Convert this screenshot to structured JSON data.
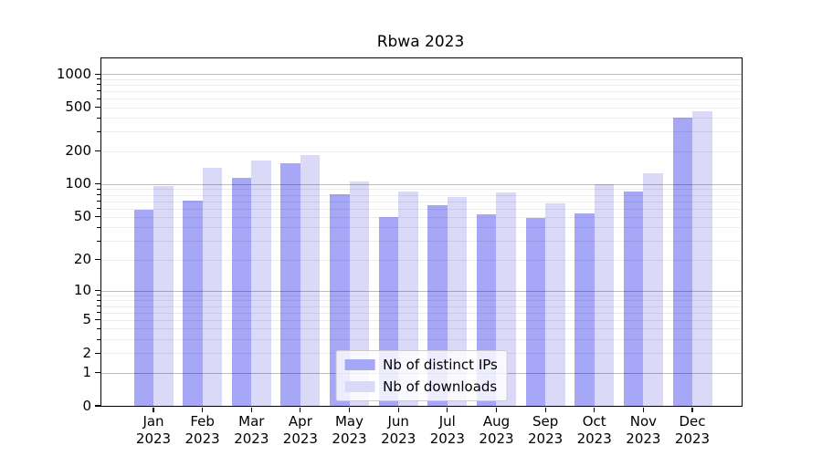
{
  "chart_data": {
    "type": "bar",
    "title": "Rbwa 2023",
    "scale": "log1p",
    "xlabel": "",
    "ylabel": "",
    "categories": [
      "Jan 2023",
      "Feb 2023",
      "Mar 2023",
      "Apr 2023",
      "May 2023",
      "Jun 2023",
      "Jul 2023",
      "Aug 2023",
      "Sep 2023",
      "Oct 2023",
      "Nov 2023",
      "Dec 2023"
    ],
    "series": [
      {
        "name": "Nb of distinct IPs",
        "color": "#a7a7f8",
        "values": [
          58,
          70,
          115,
          155,
          81,
          50,
          64,
          53,
          49,
          54,
          85,
          400
        ]
      },
      {
        "name": "Nb of downloads",
        "color": "#dadaf8",
        "values": [
          96,
          140,
          165,
          185,
          106,
          85,
          77,
          84,
          67,
          100,
          125,
          460
        ]
      }
    ],
    "yticks": [
      0,
      1,
      2,
      5,
      10,
      20,
      50,
      100,
      200,
      500,
      1000
    ],
    "major_gridlines": [
      1,
      10,
      100,
      1000
    ],
    "ylim": [
      0,
      1385
    ],
    "grid": "horizontal",
    "legend_position": "lower center"
  },
  "colors": {
    "background": "#ffffff",
    "axis": "#000000",
    "major_grid": "#bdbdbd",
    "minor_grid": "#ececec",
    "legend_border": "#cccccc"
  }
}
